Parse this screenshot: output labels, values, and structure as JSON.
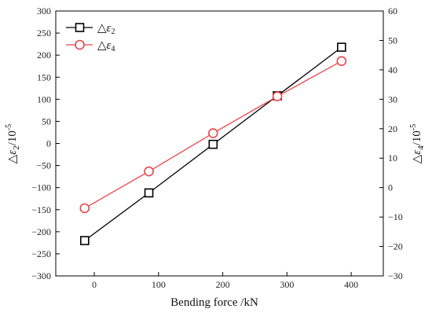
{
  "chart_data": {
    "type": "line",
    "xlabel": "Bending force /kN",
    "ylabel_left_prefix": "△",
    "ylabel_left_symbol": "ε",
    "ylabel_left_sub": "2",
    "ylabel_left_unit": "/10",
    "ylabel_left_exp": "-5",
    "ylabel_right_prefix": "△",
    "ylabel_right_symbol": "ε",
    "ylabel_right_sub": "4",
    "ylabel_right_unit": "/10",
    "ylabel_right_exp": "-5",
    "xlim": [
      -60,
      450
    ],
    "ylim_left": [
      -300,
      300
    ],
    "ylim_right": [
      -30,
      60
    ],
    "x_ticks": [
      "0",
      "100",
      "200",
      "300",
      "400"
    ],
    "y_left_ticks": [
      "−300",
      "−250",
      "−200",
      "−150",
      "−100",
      "−50",
      "0",
      "50",
      "100",
      "150",
      "200",
      "250",
      "300"
    ],
    "y_right_ticks": [
      "−30",
      "−20",
      "−10",
      "0",
      "10",
      "20",
      "30",
      "40",
      "50",
      "60"
    ],
    "grid": false,
    "legend_position": "top-left",
    "series": [
      {
        "name_prefix": "△",
        "name_symbol": "ε",
        "name_sub": "2",
        "axis": "left",
        "color": "#000000",
        "marker": "square",
        "x": [
          -15,
          85,
          185,
          285,
          385
        ],
        "y": [
          -220,
          -112,
          -2,
          108,
          218
        ]
      },
      {
        "name_prefix": "△",
        "name_symbol": "ε",
        "name_sub": "4",
        "axis": "right",
        "color": "#e8454a",
        "marker": "circle",
        "x": [
          -15,
          85,
          185,
          285,
          385
        ],
        "y": [
          -7,
          5.5,
          18.5,
          31,
          43
        ]
      }
    ]
  }
}
